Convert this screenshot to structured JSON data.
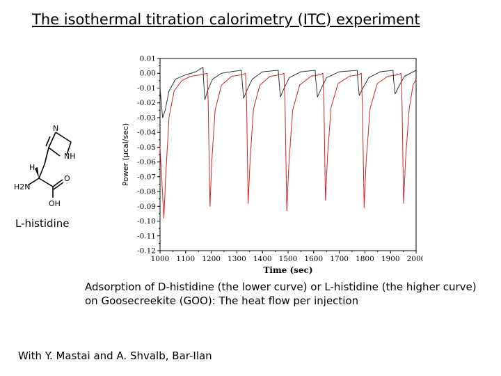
{
  "title": "The isothermal titration calorimetry (ITC) experiment",
  "molecule": {
    "caption": "L-histidine",
    "atoms": {
      "n_top": "N",
      "nh": "NH",
      "h": "H",
      "h2n": "H2N",
      "o": "O",
      "oh": "OH"
    }
  },
  "caption": "Adsorption of D-histidine (the lower curve) or L-histidine (the higher curve) on Goosecreekite (GOO): The heat flow per injection",
  "credit": "With Y. Mastai and A. Shvalb, Bar-Ilan",
  "chart_data": {
    "type": "line",
    "title": "",
    "xlabel": "Time (sec)",
    "ylabel": "Power (µcal/sec)",
    "xlim": [
      1000,
      2000
    ],
    "ylim": [
      -0.12,
      0.01
    ],
    "xticks": [
      1000,
      1100,
      1200,
      1300,
      1400,
      1500,
      1600,
      1700,
      1800,
      1900,
      2000
    ],
    "yticks": [
      "0.01",
      "0.00",
      "-0.01",
      "-0.02",
      "-0.03",
      "-0.04",
      "-0.05",
      "-0.06",
      "-0.07",
      "-0.08",
      "-0.09",
      "-0.10",
      "-0.11",
      "-0.12"
    ],
    "grid": false,
    "series": [
      {
        "label": "L-histidine (higher curve)",
        "color": "#333333",
        "points": [
          [
            1000,
            -0.01
          ],
          [
            1010,
            -0.03
          ],
          [
            1020,
            -0.025
          ],
          [
            1035,
            -0.012
          ],
          [
            1060,
            -0.004
          ],
          [
            1100,
            -0.001
          ],
          [
            1140,
            0.001
          ],
          [
            1168,
            0.004
          ],
          [
            1170,
            -0.005
          ],
          [
            1175,
            -0.018
          ],
          [
            1185,
            -0.012
          ],
          [
            1205,
            -0.004
          ],
          [
            1240,
            0.0
          ],
          [
            1275,
            0.001
          ],
          [
            1318,
            0.002
          ],
          [
            1320,
            -0.004
          ],
          [
            1326,
            -0.017
          ],
          [
            1338,
            -0.012
          ],
          [
            1360,
            -0.004
          ],
          [
            1400,
            0.001
          ],
          [
            1462,
            0.002
          ],
          [
            1464,
            -0.004
          ],
          [
            1470,
            -0.016
          ],
          [
            1482,
            -0.011
          ],
          [
            1505,
            -0.003
          ],
          [
            1550,
            0.001
          ],
          [
            1606,
            0.002
          ],
          [
            1608,
            -0.004
          ],
          [
            1615,
            -0.016
          ],
          [
            1628,
            -0.011
          ],
          [
            1650,
            -0.003
          ],
          [
            1700,
            0.001
          ],
          [
            1770,
            0.002
          ],
          [
            1772,
            -0.004
          ],
          [
            1778,
            -0.015
          ],
          [
            1792,
            -0.01
          ],
          [
            1815,
            -0.003
          ],
          [
            1860,
            0.001
          ],
          [
            1910,
            0.002
          ],
          [
            1912,
            -0.004
          ],
          [
            1918,
            -0.014
          ],
          [
            1932,
            -0.009
          ],
          [
            1955,
            -0.002
          ],
          [
            2000,
            0.002
          ]
        ]
      },
      {
        "label": "D-histidine (lower curve)",
        "color": "#cc2222",
        "points": [
          [
            1000,
            -0.05
          ],
          [
            1015,
            -0.098
          ],
          [
            1022,
            -0.07
          ],
          [
            1035,
            -0.03
          ],
          [
            1055,
            -0.012
          ],
          [
            1085,
            -0.005
          ],
          [
            1120,
            -0.002
          ],
          [
            1160,
            -0.001
          ],
          [
            1184,
            0.0
          ],
          [
            1188,
            -0.02
          ],
          [
            1195,
            -0.09
          ],
          [
            1202,
            -0.06
          ],
          [
            1215,
            -0.025
          ],
          [
            1240,
            -0.008
          ],
          [
            1280,
            -0.002
          ],
          [
            1320,
            -0.001
          ],
          [
            1334,
            0.0
          ],
          [
            1338,
            -0.02
          ],
          [
            1344,
            -0.088
          ],
          [
            1352,
            -0.058
          ],
          [
            1365,
            -0.024
          ],
          [
            1390,
            -0.008
          ],
          [
            1430,
            -0.002
          ],
          [
            1470,
            -0.001
          ],
          [
            1484,
            0.0
          ],
          [
            1488,
            -0.02
          ],
          [
            1495,
            -0.093
          ],
          [
            1503,
            -0.062
          ],
          [
            1518,
            -0.025
          ],
          [
            1545,
            -0.008
          ],
          [
            1590,
            -0.002
          ],
          [
            1625,
            -0.001
          ],
          [
            1636,
            0.0
          ],
          [
            1640,
            -0.02
          ],
          [
            1646,
            -0.086
          ],
          [
            1654,
            -0.056
          ],
          [
            1668,
            -0.023
          ],
          [
            1695,
            -0.007
          ],
          [
            1740,
            -0.002
          ],
          [
            1775,
            -0.001
          ],
          [
            1786,
            0.0
          ],
          [
            1790,
            -0.02
          ],
          [
            1797,
            -0.091
          ],
          [
            1805,
            -0.06
          ],
          [
            1820,
            -0.024
          ],
          [
            1848,
            -0.007
          ],
          [
            1890,
            -0.002
          ],
          [
            1930,
            -0.001
          ],
          [
            1941,
            0.0
          ],
          [
            1945,
            -0.02
          ],
          [
            1951,
            -0.088
          ],
          [
            1959,
            -0.058
          ],
          [
            1973,
            -0.024
          ],
          [
            1988,
            -0.008
          ],
          [
            2000,
            -0.004
          ]
        ]
      }
    ]
  }
}
